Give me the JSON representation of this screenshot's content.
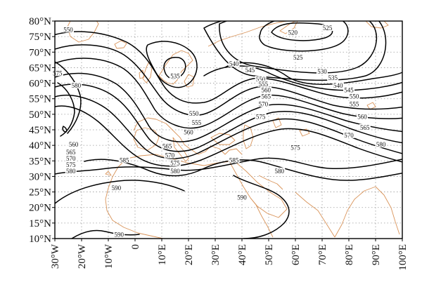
{
  "map": {
    "projection": "lat-lon",
    "lon_range": [
      -30,
      100
    ],
    "lat_range": [
      10,
      80
    ],
    "colors": {
      "contour": "#000000",
      "coastline": "#d9945a",
      "grid": "#9a9a9a",
      "frame": "#000000"
    },
    "y_tick_labels": [
      "80°N",
      "75°N",
      "70°N",
      "65°N",
      "60°N",
      "55°N",
      "50°N",
      "45°N",
      "40°N",
      "35°N",
      "30°N",
      "25°N",
      "20°N",
      "15°N",
      "10°N"
    ],
    "x_tick_labels": [
      "30°W",
      "20°W",
      "10°W",
      "0",
      "10°E",
      "20°E",
      "30°E",
      "40°E",
      "50°E",
      "60°E",
      "70°E",
      "80°E",
      "90°E",
      "100°E"
    ],
    "contour_labels": [
      {
        "text": "525",
        "lon": 72,
        "lat": 77.5
      },
      {
        "text": "520",
        "lon": 59,
        "lat": 76
      },
      {
        "text": "525",
        "lon": 61,
        "lat": 68
      },
      {
        "text": "550",
        "lon": -25,
        "lat": 77
      },
      {
        "text": "575",
        "lon": -29,
        "lat": 63
      },
      {
        "text": "580",
        "lon": -22,
        "lat": 59
      },
      {
        "text": "535",
        "lon": 15,
        "lat": 62
      },
      {
        "text": "540",
        "lon": 37,
        "lat": 66
      },
      {
        "text": "545",
        "lon": 43,
        "lat": 64
      },
      {
        "text": "550",
        "lon": 47,
        "lat": 61
      },
      {
        "text": "555",
        "lon": 48,
        "lat": 59.5
      },
      {
        "text": "560",
        "lon": 49,
        "lat": 57.5
      },
      {
        "text": "565",
        "lon": 49,
        "lat": 55.5
      },
      {
        "text": "570",
        "lon": 48,
        "lat": 53
      },
      {
        "text": "575",
        "lon": 47,
        "lat": 49
      },
      {
        "text": "530",
        "lon": 70,
        "lat": 63.5
      },
      {
        "text": "535",
        "lon": 74,
        "lat": 61.5
      },
      {
        "text": "540",
        "lon": 76,
        "lat": 59
      },
      {
        "text": "545",
        "lon": 80,
        "lat": 57.5
      },
      {
        "text": "550",
        "lon": 82,
        "lat": 55.5
      },
      {
        "text": "555",
        "lon": 82,
        "lat": 53
      },
      {
        "text": "560",
        "lon": 85,
        "lat": 49
      },
      {
        "text": "565",
        "lon": 86,
        "lat": 45.5
      },
      {
        "text": "570",
        "lon": 80,
        "lat": 43
      },
      {
        "text": "575",
        "lon": 60,
        "lat": 39
      },
      {
        "text": "580",
        "lon": 92,
        "lat": 40
      },
      {
        "text": "580",
        "lon": 54,
        "lat": 31.5
      },
      {
        "text": "550",
        "lon": 22,
        "lat": 50
      },
      {
        "text": "555",
        "lon": 23,
        "lat": 47
      },
      {
        "text": "560",
        "lon": 20,
        "lat": 44
      },
      {
        "text": "565",
        "lon": 12,
        "lat": 39.5
      },
      {
        "text": "570",
        "lon": 13,
        "lat": 36.5
      },
      {
        "text": "575",
        "lon": 15,
        "lat": 34
      },
      {
        "text": "580",
        "lon": 15,
        "lat": 31.5
      },
      {
        "text": "585",
        "lon": -4,
        "lat": 35
      },
      {
        "text": "585",
        "lon": 37,
        "lat": 35
      },
      {
        "text": "560",
        "lon": -23,
        "lat": 40
      },
      {
        "text": "565",
        "lon": -24,
        "lat": 37.5
      },
      {
        "text": "570",
        "lon": -24,
        "lat": 35.5
      },
      {
        "text": "575",
        "lon": -24,
        "lat": 33.5
      },
      {
        "text": "580",
        "lon": -24,
        "lat": 31.5
      },
      {
        "text": "590",
        "lon": -7,
        "lat": 26
      },
      {
        "text": "590",
        "lon": 40,
        "lat": 23
      },
      {
        "text": "590",
        "lon": -6,
        "lat": 11
      }
    ]
  }
}
